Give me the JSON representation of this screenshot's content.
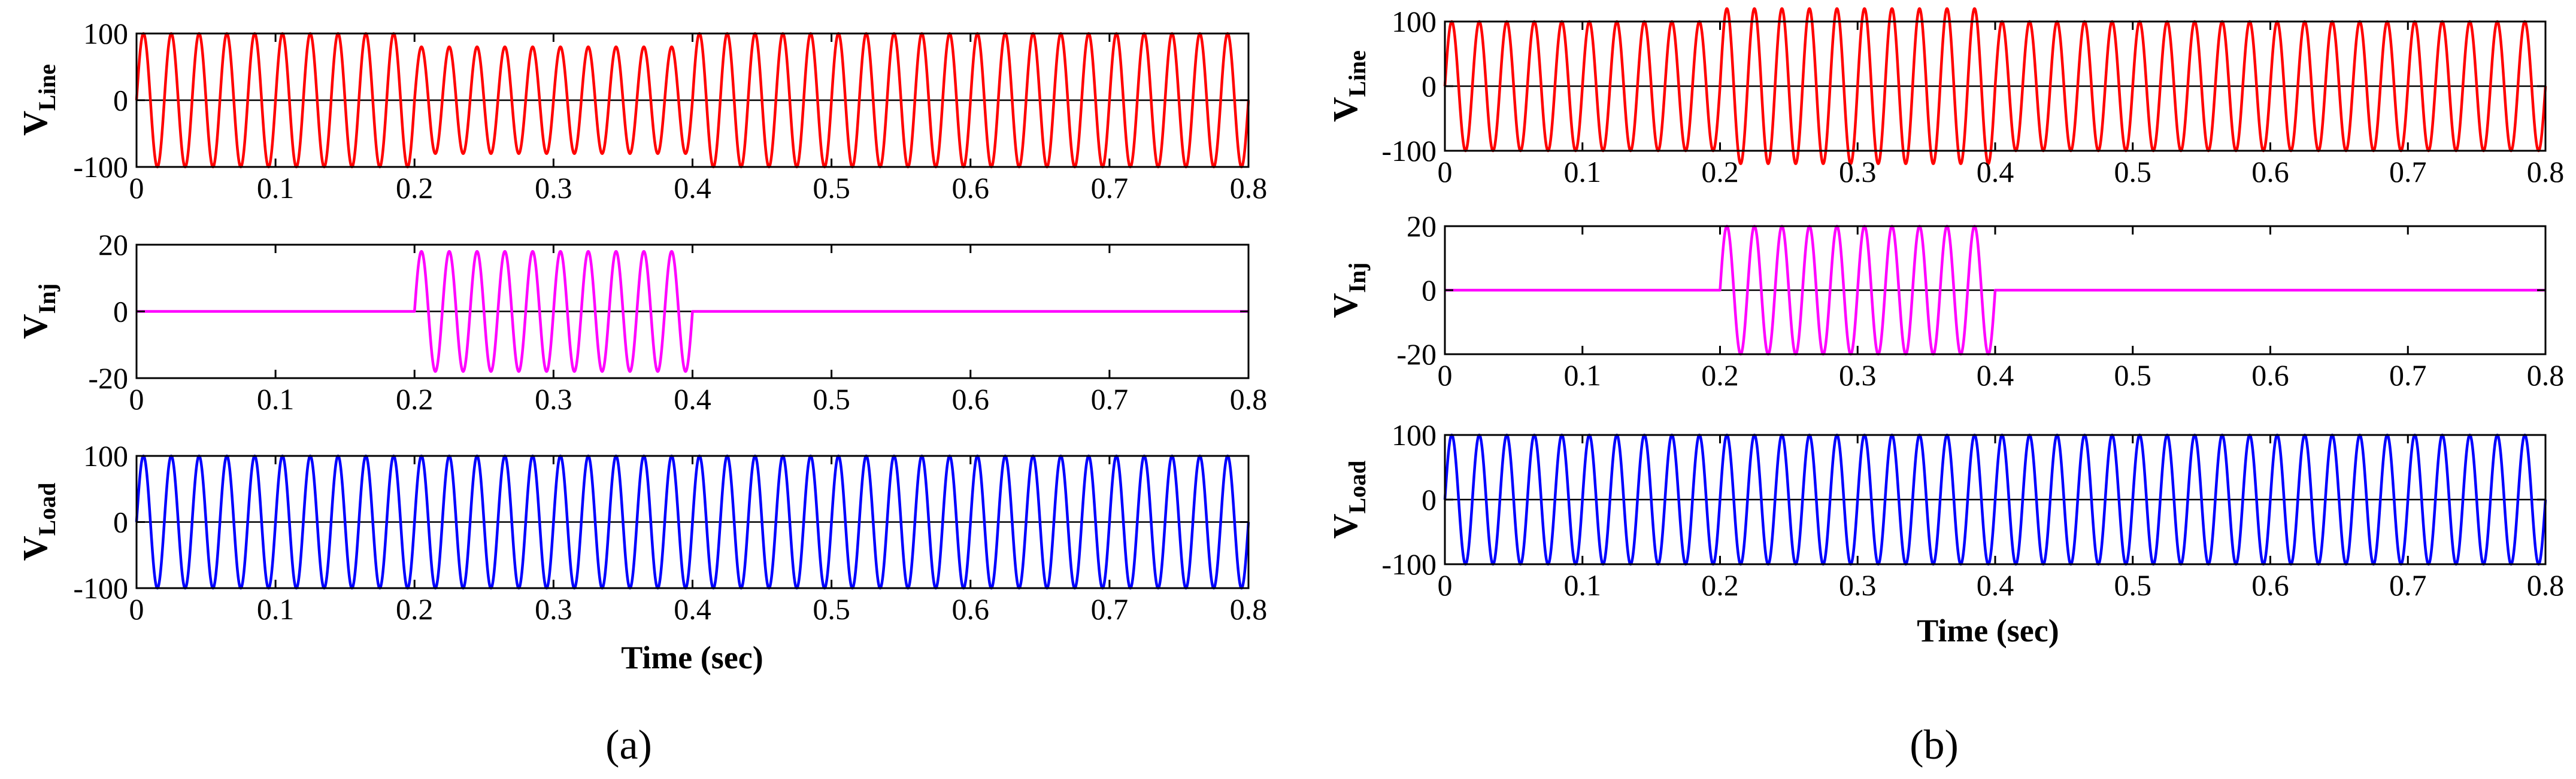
{
  "figure": {
    "panel_labels": [
      "(a)",
      "(b)"
    ]
  },
  "chart_data": [
    {
      "type": "line",
      "panel": "a",
      "title": "",
      "ylabel": "V_Line",
      "ylabel_main": "V",
      "ylabel_sub": "Line",
      "xlabel": "",
      "xlim": [
        0,
        0.8
      ],
      "ylim": [
        -100,
        100
      ],
      "xticks": [
        "0",
        "0.1",
        "0.2",
        "0.3",
        "0.4",
        "0.5",
        "0.6",
        "0.7",
        "0.8"
      ],
      "yticks": [
        "100",
        "0",
        "-100"
      ],
      "grid": false,
      "series": [
        {
          "name": "V_Line",
          "color": "#ff0000",
          "frequency_hz": 50,
          "segments": [
            {
              "t_start": 0,
              "t_end": 0.2,
              "amplitude": 100
            },
            {
              "t_start": 0.2,
              "t_end": 0.4,
              "amplitude": 80
            },
            {
              "t_start": 0.4,
              "t_end": 0.8,
              "amplitude": 100
            }
          ]
        }
      ]
    },
    {
      "type": "line",
      "panel": "a",
      "title": "",
      "ylabel": "V_Inj",
      "ylabel_main": "V",
      "ylabel_sub": "Inj",
      "xlabel": "",
      "xlim": [
        0,
        0.8
      ],
      "ylim": [
        -20,
        20
      ],
      "xticks": [
        "0",
        "0.1",
        "0.2",
        "0.3",
        "0.4",
        "0.5",
        "0.6",
        "0.7",
        "0.8"
      ],
      "yticks": [
        "20",
        "0",
        "-20"
      ],
      "grid": false,
      "series": [
        {
          "name": "V_Inj",
          "color": "#ff00ff",
          "frequency_hz": 50,
          "segments": [
            {
              "t_start": 0,
              "t_end": 0.2,
              "amplitude": 0
            },
            {
              "t_start": 0.2,
              "t_end": 0.4,
              "amplitude": 18
            },
            {
              "t_start": 0.4,
              "t_end": 0.8,
              "amplitude": 0
            }
          ]
        }
      ]
    },
    {
      "type": "line",
      "panel": "a",
      "title": "",
      "ylabel": "V_Load",
      "ylabel_main": "V",
      "ylabel_sub": "Load",
      "xlabel": "Time (sec)",
      "xlim": [
        0,
        0.8
      ],
      "ylim": [
        -100,
        100
      ],
      "xticks": [
        "0",
        "0.1",
        "0.2",
        "0.3",
        "0.4",
        "0.5",
        "0.6",
        "0.7",
        "0.8"
      ],
      "yticks": [
        "100",
        "0",
        "-100"
      ],
      "grid": false,
      "series": [
        {
          "name": "V_Load",
          "color": "#0000ff",
          "frequency_hz": 50,
          "segments": [
            {
              "t_start": 0,
              "t_end": 0.8,
              "amplitude": 100
            }
          ]
        }
      ]
    },
    {
      "type": "line",
      "panel": "b",
      "title": "",
      "ylabel": "V_Line",
      "ylabel_main": "V",
      "ylabel_sub": "Line",
      "xlabel": "",
      "xlim": [
        0,
        0.8
      ],
      "ylim": [
        -100,
        100
      ],
      "xticks": [
        "0",
        "0.1",
        "0.2",
        "0.3",
        "0.4",
        "0.5",
        "0.6",
        "0.7",
        "0.8"
      ],
      "yticks": [
        "100",
        "0",
        "-100"
      ],
      "grid": false,
      "series": [
        {
          "name": "V_Line",
          "color": "#ff0000",
          "frequency_hz": 50,
          "segments": [
            {
              "t_start": 0,
              "t_end": 0.2,
              "amplitude": 100
            },
            {
              "t_start": 0.2,
              "t_end": 0.4,
              "amplitude": 120
            },
            {
              "t_start": 0.4,
              "t_end": 0.8,
              "amplitude": 100
            }
          ]
        }
      ]
    },
    {
      "type": "line",
      "panel": "b",
      "title": "",
      "ylabel": "V_Inj",
      "ylabel_main": "V",
      "ylabel_sub": "Inj",
      "xlabel": "",
      "xlim": [
        0,
        0.8
      ],
      "ylim": [
        -20,
        20
      ],
      "xticks": [
        "0",
        "0.1",
        "0.2",
        "0.3",
        "0.4",
        "0.5",
        "0.6",
        "0.7",
        "0.8"
      ],
      "yticks": [
        "20",
        "0",
        "-20"
      ],
      "grid": false,
      "series": [
        {
          "name": "V_Inj",
          "color": "#ff00ff",
          "frequency_hz": 50,
          "segments": [
            {
              "t_start": 0,
              "t_end": 0.2,
              "amplitude": 0
            },
            {
              "t_start": 0.2,
              "t_end": 0.4,
              "amplitude": 20
            },
            {
              "t_start": 0.4,
              "t_end": 0.8,
              "amplitude": 0
            }
          ]
        }
      ]
    },
    {
      "type": "line",
      "panel": "b",
      "title": "",
      "ylabel": "V_Load",
      "ylabel_main": "V",
      "ylabel_sub": "Load",
      "xlabel": "Time (sec)",
      "xlim": [
        0,
        0.8
      ],
      "ylim": [
        -100,
        100
      ],
      "xticks": [
        "0",
        "0.1",
        "0.2",
        "0.3",
        "0.4",
        "0.5",
        "0.6",
        "0.7",
        "0.8"
      ],
      "yticks": [
        "100",
        "0",
        "-100"
      ],
      "grid": false,
      "series": [
        {
          "name": "V_Load",
          "color": "#0000ff",
          "frequency_hz": 50,
          "segments": [
            {
              "t_start": 0,
              "t_end": 0.8,
              "amplitude": 100
            }
          ]
        }
      ]
    }
  ]
}
